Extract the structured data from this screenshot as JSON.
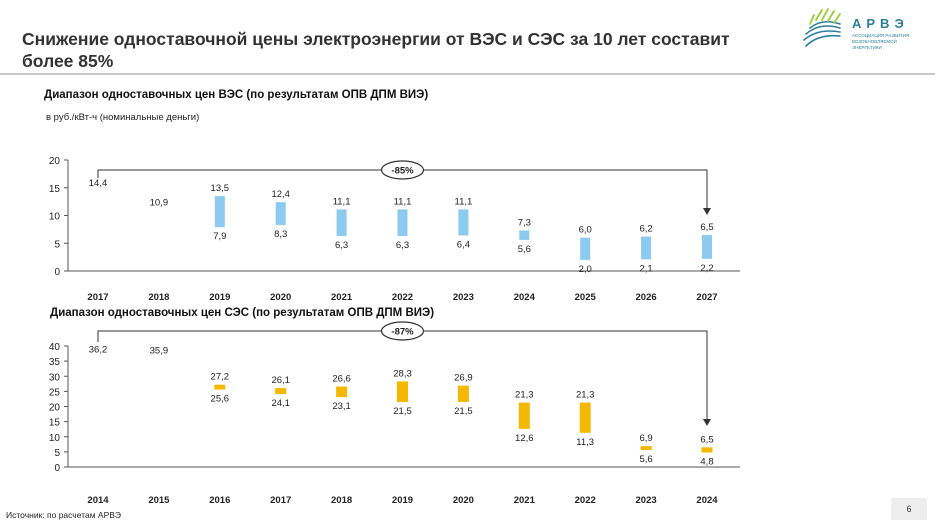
{
  "header": {
    "title": "Снижение одноставочной цены электроэнергии от ВЭС и СЭС за 10 лет составит более  85%",
    "logo_text": "АРВЭ",
    "logo_subtitle": "АССОЦИАЦИЯ РАЗВИТИЯ ВОЗОБНОВЛЯЕМОЙ ЭНЕРГЕТИКИ"
  },
  "footer": {
    "source": "Источник:  по расчетам АРВЭ",
    "page_number": "6"
  },
  "chart_data": [
    {
      "type": "bar",
      "title": "Диапазон одноставочных цен ВЭС (по результатам ОПВ ДПМ ВИЭ)",
      "ylabel": "в руб./кВт-ч (номинальные деньги)",
      "ylim": [
        0,
        20
      ],
      "yticks": [
        "0",
        "5",
        "10",
        "15",
        "20"
      ],
      "categories": [
        "2017",
        "2018",
        "2019",
        "2020",
        "2021",
        "2022",
        "2023",
        "2024",
        "2025",
        "2026",
        "2027"
      ],
      "high": [
        14.4,
        10.9,
        13.5,
        12.4,
        11.1,
        11.1,
        11.1,
        7.3,
        6.0,
        6.2,
        6.5
      ],
      "low": [
        null,
        null,
        7.9,
        8.3,
        6.3,
        6.3,
        6.4,
        5.6,
        2.0,
        2.1,
        2.2
      ],
      "high_labels": [
        "14,4",
        "10,9",
        "13,5",
        "12,4",
        "11,1",
        "11,1",
        "11,1",
        "7,3",
        "6,0",
        "6,2",
        "6,5"
      ],
      "low_labels": [
        "",
        "",
        "7,9",
        "8,3",
        "6,3",
        "6,3",
        "6,4",
        "5,6",
        "2,0",
        "2,1",
        "2,2"
      ],
      "color": "#8ccbef",
      "annotation": "-85%",
      "annotation_from": "2017",
      "annotation_to": "2027"
    },
    {
      "type": "bar",
      "title": "Диапазон одноставочных цен СЭС (по результатам ОПВ ДПМ ВИЭ)",
      "ylim": [
        0,
        40
      ],
      "yticks": [
        "0",
        "5",
        "10",
        "15",
        "20",
        "25",
        "30",
        "35",
        "40"
      ],
      "categories": [
        "2014",
        "2015",
        "2016",
        "2017",
        "2018",
        "2019",
        "2020",
        "2021",
        "2022",
        "2023",
        "2024"
      ],
      "high": [
        36.2,
        35.9,
        27.2,
        26.1,
        26.6,
        28.3,
        26.9,
        21.3,
        21.3,
        6.9,
        6.5
      ],
      "low": [
        null,
        null,
        25.6,
        24.1,
        23.1,
        21.5,
        21.5,
        12.6,
        11.3,
        5.6,
        4.8
      ],
      "high_labels": [
        "36,2",
        "35,9",
        "27,2",
        "26,1",
        "26,6",
        "28,3",
        "26,9",
        "21,3",
        "21,3",
        "6,9",
        "6,5"
      ],
      "low_labels": [
        "",
        "",
        "25,6",
        "24,1",
        "23,1",
        "21,5",
        "21,5",
        "12,6",
        "11,3",
        "5,6",
        "4,8"
      ],
      "color": "#f5b800",
      "annotation": "-87%",
      "annotation_from": "2014",
      "annotation_to": "2024"
    }
  ]
}
